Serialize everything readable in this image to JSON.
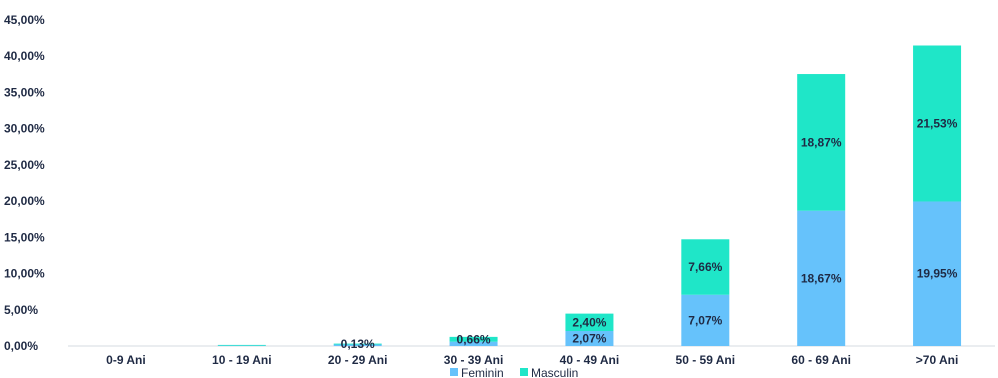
{
  "chart_data": {
    "type": "bar",
    "stacked": true,
    "categories": [
      "0-9 Ani",
      "10 - 19 Ani",
      "20 - 29 Ani",
      "30 - 39 Ani",
      "40 - 49 Ani",
      "50 - 59 Ani",
      "60 - 69 Ani",
      ">70 Ani"
    ],
    "series": [
      {
        "name": "Feminin",
        "color": "#66c2fb",
        "values": [
          0.0,
          0.05,
          0.2,
          0.6,
          2.07,
          7.07,
          18.67,
          19.95
        ],
        "labels": [
          "",
          "",
          "",
          "",
          "2,07%",
          "7,07%",
          "18,67%",
          "19,95%"
        ]
      },
      {
        "name": "Masculin",
        "color": "#1fe6c8",
        "values": [
          0.0,
          0.1,
          0.13,
          0.66,
          2.4,
          7.66,
          18.87,
          21.53
        ],
        "labels": [
          "",
          "",
          "0,13%",
          "0,66%",
          "2,40%",
          "7,66%",
          "18,87%",
          "21,53%"
        ]
      }
    ],
    "yticks": [
      "0,00%",
      "5,00%",
      "10,00%",
      "15,00%",
      "20,00%",
      "25,00%",
      "30,00%",
      "35,00%",
      "40,00%",
      "45,00%"
    ],
    "ylim": [
      0,
      45
    ],
    "title": "",
    "xlabel": "",
    "ylabel": "",
    "grid": false,
    "legend_position": "bottom"
  }
}
